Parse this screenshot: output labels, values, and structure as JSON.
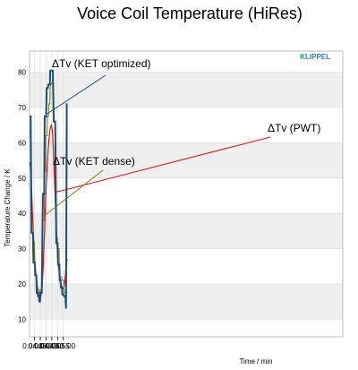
{
  "chart_data": {
    "type": "line",
    "title": "Voice Coil Temperature (HiRes)",
    "brand": "KLIPPEL",
    "xlabel": "Time / min",
    "ylabel": "Temperature Change / K",
    "xlim": [
      30.6,
      303.4
    ],
    "ylim": [
      5,
      86
    ],
    "yticks": [
      10,
      20,
      30,
      40,
      50,
      60,
      70,
      80
    ],
    "xticks": [
      {
        "t": 35,
        "label": "0:04:35"
      },
      {
        "t": 40,
        "label": "0:04:40"
      },
      {
        "t": 45,
        "label": "0:04:45"
      },
      {
        "t": 50,
        "label": "0:04:50"
      },
      {
        "t": 55,
        "label": "0:04:55"
      },
      {
        "t": 60,
        "label": "0:05:00"
      }
    ],
    "grid": true,
    "series": [
      {
        "name": "ΔTv (PWT)",
        "color": "#e01010",
        "x": [
          30.6,
          31.5,
          32.5,
          33.5,
          34.5,
          35.5,
          36.5,
          37.5,
          38.5,
          39.5,
          40.5,
          41.5,
          42.5,
          43.5,
          44.5,
          45.5,
          46.5,
          47.5,
          48.5,
          49.5,
          50.5,
          51.5,
          52.5,
          53.5,
          54.5,
          55.5,
          56.5,
          57.5,
          58.5,
          59.5,
          60.5,
          61.5,
          62.5,
          63.4
        ],
        "y": [
          54.5,
          53,
          46,
          37,
          30,
          25,
          21.5,
          19,
          17.5,
          16.5,
          16.5,
          19,
          25,
          33.5,
          42.5,
          50.5,
          56.5,
          61,
          64,
          65,
          63.5,
          57,
          48,
          38.5,
          31,
          26,
          23,
          21,
          19.5,
          18.5,
          19,
          21,
          25.5,
          27
        ]
      },
      {
        "name": "ΔTv (KET dense)",
        "color": "#7d7a10",
        "x": [
          30.6,
          31.2,
          31.6,
          32.3,
          32.5,
          33.7,
          34.0,
          35.0,
          35.3,
          36.0,
          36.2,
          37.1,
          37.4,
          38.3,
          38.6,
          39.5,
          40.0,
          40.4,
          41.3,
          42.0,
          42.4,
          43.4,
          43.7,
          44.6,
          44.9,
          45.8,
          46.2,
          47.2,
          47.4,
          48.3,
          48.6,
          49.8,
          50.2,
          51.4,
          51.7,
          52.6,
          52.9,
          53.7,
          53.9,
          55.0,
          55.3,
          56.4,
          56.7,
          57.4,
          57.7,
          58.6,
          58.9,
          60.4,
          60.8,
          61.8,
          62.3,
          63.4
        ],
        "y": [
          63,
          63,
          60,
          38,
          38,
          38,
          32,
          32,
          23,
          23,
          21,
          21,
          18.5,
          18.5,
          17.5,
          17.5,
          18.5,
          18,
          18,
          38,
          38,
          38,
          52,
          52,
          62,
          62,
          67.5,
          67.5,
          71,
          71,
          76,
          77,
          77,
          77,
          66,
          66,
          66,
          33,
          33,
          33,
          30,
          30,
          22,
          22,
          22,
          22,
          21,
          21,
          17.5,
          17.5,
          17,
          66
        ]
      },
      {
        "name": "ΔTv (KET optimized)",
        "color": "#1a5276",
        "x": [
          30.6,
          31.6,
          32.3,
          33.6,
          34.0,
          35.2,
          35.5,
          36.5,
          36.8,
          37.7,
          38.0,
          38.8,
          39.1,
          39.8,
          40.0,
          40.5,
          41.3,
          42.2,
          42.5,
          43.4,
          43.8,
          45.1,
          45.5,
          46.6,
          47.0,
          48.3,
          48.6,
          49.8,
          50.2,
          50.9,
          51.7,
          52.7,
          53.0,
          53.9,
          54.2,
          55.1,
          55.4,
          56.6,
          56.9,
          57.6,
          57.9,
          58.8,
          59.2,
          60.3,
          60.7,
          61.8,
          62.4,
          63.0,
          63.4
        ],
        "y": [
          67.5,
          67.5,
          34.5,
          34.5,
          26,
          26,
          22.5,
          22.5,
          17.5,
          17.5,
          16.5,
          16.5,
          15,
          15,
          17.5,
          17.5,
          17.5,
          45.5,
          45.5,
          45.5,
          67.5,
          67.5,
          75.5,
          75.5,
          76.5,
          76.5,
          80.5,
          80.5,
          80.5,
          80.5,
          66,
          66,
          66,
          31.5,
          31.5,
          31.5,
          25.5,
          25.5,
          21,
          21,
          19,
          19,
          17,
          17,
          16.5,
          16.5,
          13,
          71,
          71
        ]
      }
    ],
    "annotations": [
      {
        "text": "ΔTv (KET optimized)",
        "series": 2
      },
      {
        "text": "ΔTv (PWT)",
        "series": 0
      },
      {
        "text": "ΔTv (KET dense)",
        "series": 1
      }
    ]
  }
}
